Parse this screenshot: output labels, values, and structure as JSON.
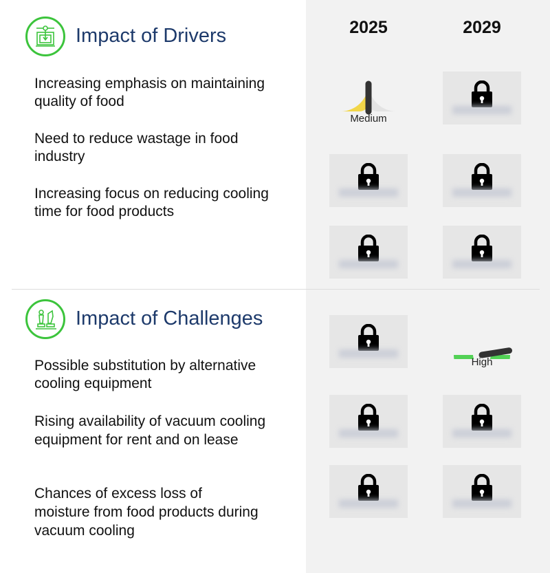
{
  "years": [
    "2025",
    "2029"
  ],
  "drivers": {
    "title": "Impact of Drivers",
    "icon": "machine-icon",
    "items": [
      "Increasing emphasis on maintaining quality of food",
      "Need to reduce wastage in food industry",
      "Increasing focus on reducing cooling time for food products"
    ],
    "impacts": [
      [
        "Medium",
        "locked"
      ],
      [
        "locked",
        "locked"
      ],
      [
        "locked",
        "locked"
      ]
    ]
  },
  "challenges": {
    "title": "Impact of Challenges",
    "icon": "chess-icon",
    "items": [
      "Possible substitution by alternative cooling equipment",
      "Rising availability of vacuum cooling equipment for rent and on lease",
      "Chances of excess loss of moisture from food products during vacuum cooling"
    ],
    "impacts": [
      [
        "locked",
        "High"
      ],
      [
        "locked",
        "locked"
      ],
      [
        "locked",
        "locked"
      ]
    ]
  },
  "gauges": {
    "Medium": {
      "label": "Medium",
      "level": 0.5,
      "color": "#f2d649"
    },
    "High": {
      "label": "High",
      "level": 0.95,
      "color": "#52d155"
    }
  },
  "colors": {
    "accent": "#3cc43c",
    "title": "#1d3a6b",
    "panel": "#f2f2f2"
  }
}
